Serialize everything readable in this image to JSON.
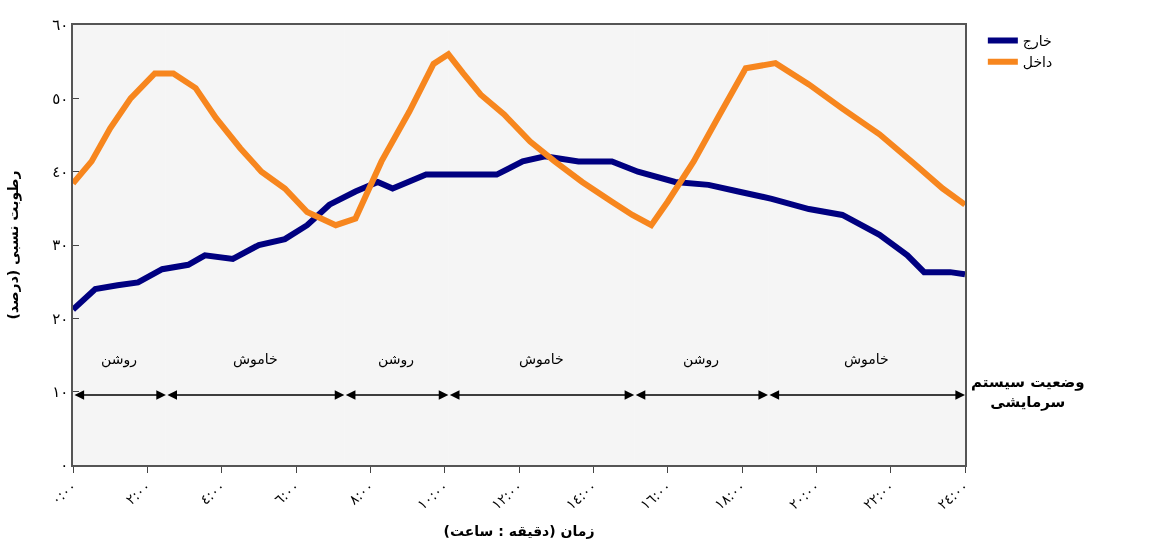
{
  "chart_data": {
    "type": "line",
    "xlabel": "زمان (دقیقه : ساعت)",
    "ylabel": "رطوبت نسبی (درصد)",
    "xlim": [
      0,
      24
    ],
    "xticks": [
      {
        "value": 0,
        "label": "٠:٠٠"
      },
      {
        "value": 2,
        "label": "٢:٠٠"
      },
      {
        "value": 4,
        "label": "٤:٠٠"
      },
      {
        "value": 6,
        "label": "٦:٠٠"
      },
      {
        "value": 8,
        "label": "٨:٠٠"
      },
      {
        "value": 10,
        "label": "١٠:٠٠"
      },
      {
        "value": 12,
        "label": "١٢:٠٠"
      },
      {
        "value": 14,
        "label": "١٤:٠٠"
      },
      {
        "value": 16,
        "label": "١٦:٠٠"
      },
      {
        "value": 18,
        "label": "١٨:٠٠"
      },
      {
        "value": 20,
        "label": "٢٠:٠٠"
      },
      {
        "value": 22,
        "label": "٢٢:٠٠"
      },
      {
        "value": 24,
        "label": "٢٤:٠٠"
      }
    ],
    "ylim": [
      0,
      60
    ],
    "yticks": [
      {
        "value": 0,
        "label": "٠"
      },
      {
        "value": 10,
        "label": "١٠"
      },
      {
        "value": 20,
        "label": "٢٠"
      },
      {
        "value": 30,
        "label": "٣٠"
      },
      {
        "value": 40,
        "label": "٤٠"
      },
      {
        "value": 50,
        "label": "٥٠"
      },
      {
        "value": 60,
        "label": "٦٠"
      }
    ],
    "series": [
      {
        "name": "خارج",
        "color": "#000080",
        "x": [
          0,
          0.6,
          1.2,
          1.75,
          2.4,
          3.1,
          3.55,
          4.3,
          5,
          5.7,
          6.3,
          6.9,
          7.6,
          8.2,
          8.6,
          9.5,
          10.5,
          11.4,
          12.1,
          12.7,
          13.6,
          14.5,
          15.2,
          16.2,
          17.1,
          17.9,
          18.8,
          19.8,
          20.7,
          21.7,
          22.45,
          22.9,
          23.6,
          24
        ],
        "values": [
          21.2,
          24,
          24.5,
          24.9,
          26.7,
          27.3,
          28.6,
          28.1,
          30,
          30.8,
          32.7,
          35.5,
          37.3,
          38.6,
          37.7,
          39.6,
          39.6,
          39.6,
          41.4,
          42.1,
          41.4,
          41.4,
          40,
          38.6,
          38.2,
          37.3,
          36.3,
          34.9,
          34.1,
          31.4,
          28.6,
          26.3,
          26.3,
          26
        ]
      },
      {
        "name": "داخل",
        "color": "#f7861e",
        "x": [
          0,
          0.5,
          1,
          1.55,
          2.2,
          2.7,
          3.3,
          3.85,
          4.5,
          5.07,
          5.7,
          6.3,
          7.07,
          7.6,
          8.3,
          9.05,
          9.7,
          10.1,
          10.5,
          10.97,
          11.6,
          12.3,
          12.96,
          13.7,
          14.5,
          15.05,
          15.56,
          16,
          16.7,
          17.4,
          18.1,
          18.9,
          19.8,
          20.7,
          21.7,
          22.65,
          23.4,
          24
        ],
        "values": [
          38.4,
          41.4,
          45.9,
          50,
          53.4,
          53.4,
          51.4,
          47.3,
          43.2,
          40,
          37.7,
          34.5,
          32.7,
          33.6,
          41.4,
          48.2,
          54.7,
          56,
          53.4,
          50.5,
          47.8,
          44.1,
          41.4,
          38.6,
          35.9,
          34.1,
          32.7,
          35.9,
          41.4,
          47.8,
          54.1,
          54.8,
          51.9,
          48.6,
          45.1,
          41,
          37.7,
          35.5
        ]
      }
    ],
    "bands": [
      {
        "axis": "x",
        "from": 0,
        "to": 2.5,
        "label": "روشن"
      },
      {
        "axis": "x",
        "from": 2.5,
        "to": 7.3,
        "label": "خاموش"
      },
      {
        "axis": "x",
        "from": 7.3,
        "to": 10.1,
        "label": "روشن"
      },
      {
        "axis": "x",
        "from": 10.1,
        "to": 15.1,
        "label": "خاموش"
      },
      {
        "axis": "x",
        "from": 15.1,
        "to": 18.7,
        "label": "روشن"
      },
      {
        "axis": "x",
        "from": 18.7,
        "to": 24,
        "label": "خاموش"
      }
    ],
    "annotations": [
      "وضعیت سیستم سرمایشی"
    ],
    "legend": "top right",
    "grid": false,
    "marker": "none",
    "line_style": "solid"
  }
}
